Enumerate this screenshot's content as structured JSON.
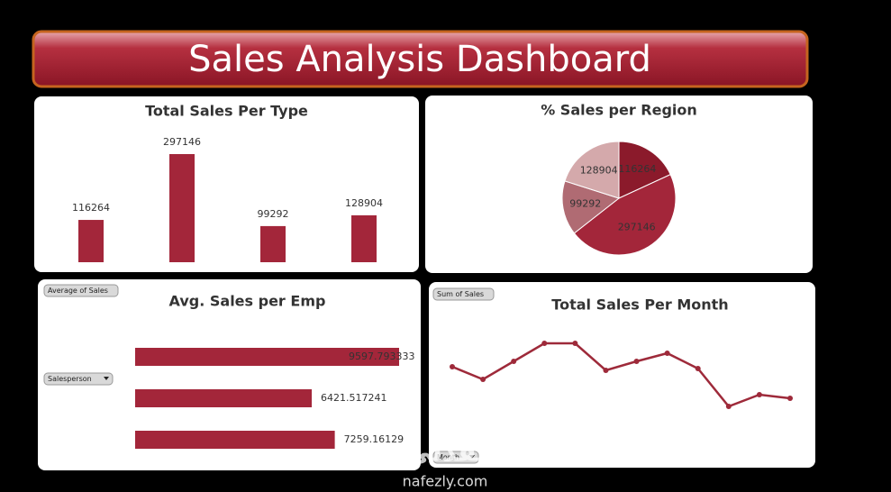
{
  "dashboard": {
    "title": "Sales Analysis Dashboard"
  },
  "chart_data": [
    {
      "type": "bar",
      "title": "Total Sales Per Type",
      "categories": [
        null,
        null,
        null,
        null
      ],
      "values": [
        116264,
        297146,
        99292,
        128904
      ],
      "color": "#a3263a"
    },
    {
      "type": "pie",
      "title": "% Sales per Region",
      "categories": [
        null,
        null,
        null,
        null
      ],
      "values": [
        116264,
        297146,
        99292,
        128904
      ],
      "colors": [
        "#8b1a2b",
        "#a3263a",
        "#b06b73",
        "#d4a9ab"
      ]
    },
    {
      "type": "bar",
      "orientation": "horizontal",
      "title": "Avg. Sales per Emp",
      "categories": [
        null,
        null,
        null
      ],
      "values": [
        9597.793333,
        6421.517241,
        7259.16129
      ],
      "color": "#a3263a",
      "buttons": [
        "Average of Sales",
        "Salesperson"
      ]
    },
    {
      "type": "line",
      "title": "Total Sales Per Month",
      "categories": [
        null,
        null,
        null,
        null,
        null,
        null,
        null,
        null,
        null,
        null,
        null,
        null
      ],
      "values": [
        55200,
        49600,
        57600,
        65600,
        65600,
        53600,
        57600,
        61200,
        54400,
        37600,
        42800,
        41200
      ],
      "color": "#9e2a3a",
      "buttons": [
        "Sum of Sales",
        "Month"
      ]
    }
  ],
  "watermark": {
    "arabic": "نفذلي",
    "site": "nafezly.com"
  }
}
